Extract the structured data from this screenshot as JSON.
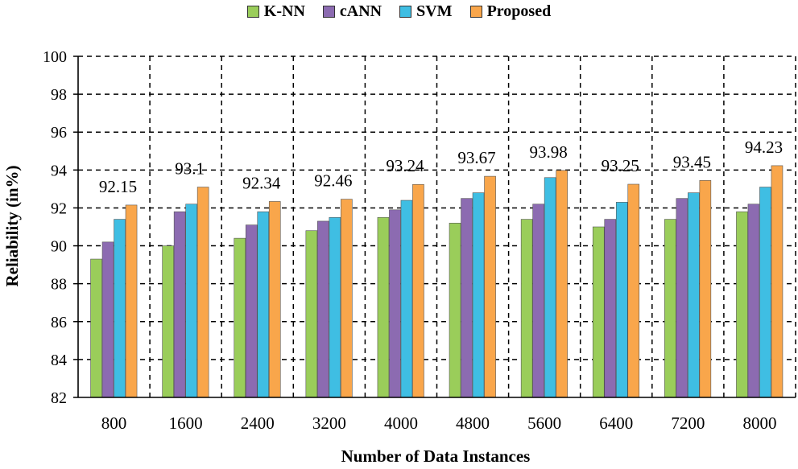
{
  "chart_data": {
    "type": "bar",
    "title": "",
    "xlabel": "Number of Data Instances",
    "ylabel": "Reliability (in%)",
    "ylim": [
      82,
      100
    ],
    "yticks": [
      82,
      84,
      86,
      88,
      90,
      92,
      94,
      96,
      98,
      100
    ],
    "grid": true,
    "legend_position": "top-center",
    "categories": [
      "800",
      "1600",
      "2400",
      "3200",
      "4000",
      "4800",
      "5600",
      "6400",
      "7200",
      "8000"
    ],
    "series": [
      {
        "name": "K-NN",
        "color": "#9ACD5A",
        "values": [
          89.3,
          90.0,
          90.4,
          90.8,
          91.5,
          91.2,
          91.4,
          91.0,
          91.4,
          91.8
        ]
      },
      {
        "name": "cANN",
        "color": "#8C6BB1",
        "values": [
          90.2,
          91.8,
          91.1,
          91.3,
          91.9,
          92.5,
          92.2,
          91.4,
          92.5,
          92.2
        ]
      },
      {
        "name": "SVM",
        "color": "#3FBEE3",
        "values": [
          91.4,
          92.2,
          91.8,
          91.5,
          92.4,
          92.8,
          93.6,
          92.3,
          92.8,
          93.1
        ]
      },
      {
        "name": "Proposed",
        "color": "#F9A64B",
        "values": [
          92.15,
          93.1,
          92.34,
          92.46,
          93.24,
          93.67,
          93.98,
          93.25,
          93.45,
          94.23
        ]
      }
    ],
    "data_labels": [
      "92.15",
      "93.1",
      "92.34",
      "92.46",
      "93.24",
      "93.67",
      "93.98",
      "93.25",
      "93.45",
      "94.23"
    ]
  }
}
